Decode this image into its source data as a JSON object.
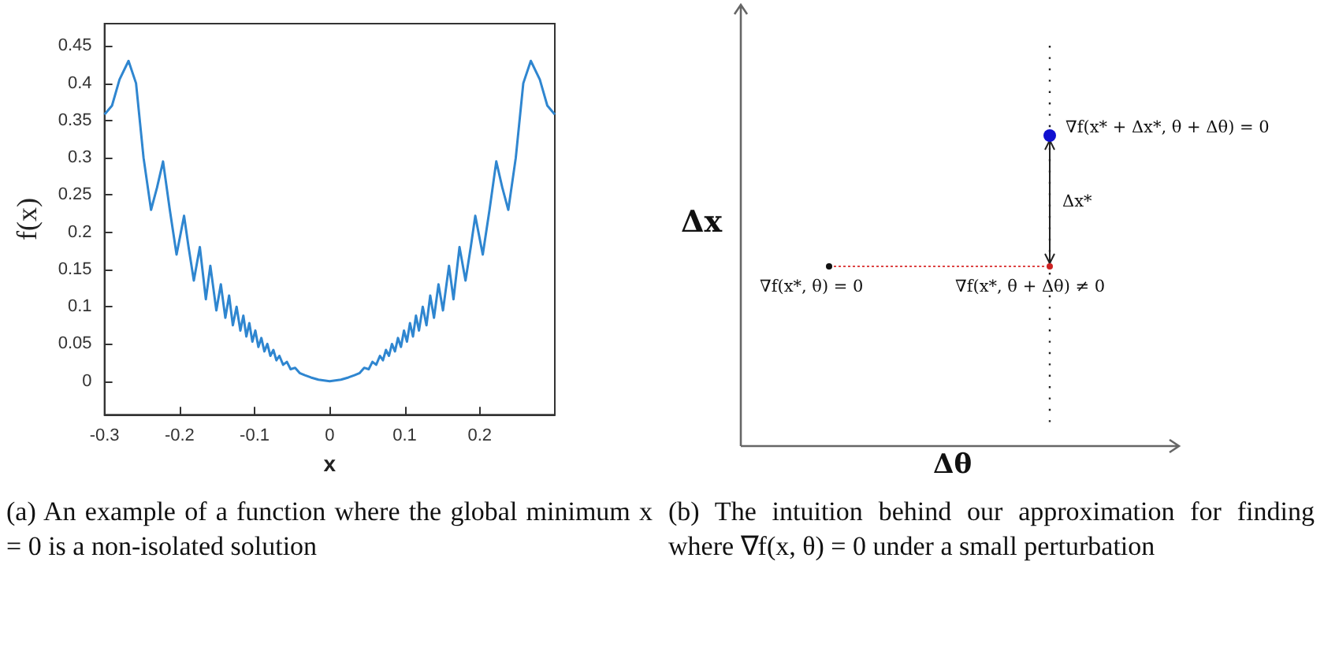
{
  "chart_data": [
    {
      "type": "line",
      "xlabel": "x",
      "ylabel": "f(x)",
      "xlim": [
        -0.3,
        0.3
      ],
      "xticks": [
        -0.3,
        -0.2,
        -0.1,
        0,
        0.1,
        0.2
      ],
      "ylim": [
        -0.045,
        0.48
      ],
      "yticks": [
        0,
        0.05,
        0.1,
        0.15,
        0.2,
        0.25,
        0.3,
        0.35,
        0.4,
        0.45
      ],
      "grid": false,
      "marker": "none",
      "line_style": "solid",
      "x": [
        -0.3,
        -0.29,
        -0.28,
        -0.268,
        -0.258,
        -0.248,
        -0.238,
        -0.23,
        -0.222,
        -0.213,
        -0.204,
        -0.194,
        -0.188,
        -0.181,
        -0.173,
        -0.165,
        -0.159,
        -0.151,
        -0.145,
        -0.139,
        -0.134,
        -0.129,
        -0.124,
        -0.119,
        -0.115,
        -0.111,
        -0.107,
        -0.103,
        -0.099,
        -0.095,
        -0.091,
        -0.087,
        -0.083,
        -0.079,
        -0.075,
        -0.071,
        -0.067,
        -0.062,
        -0.057,
        -0.052,
        -0.046,
        -0.04,
        -0.033,
        -0.025,
        -0.015,
        0,
        0.015,
        0.025,
        0.033,
        0.04,
        0.046,
        0.052,
        0.057,
        0.062,
        0.067,
        0.071,
        0.075,
        0.079,
        0.083,
        0.087,
        0.091,
        0.095,
        0.099,
        0.103,
        0.107,
        0.111,
        0.115,
        0.119,
        0.124,
        0.129,
        0.134,
        0.139,
        0.145,
        0.151,
        0.159,
        0.165,
        0.173,
        0.181,
        0.188,
        0.194,
        0.204,
        0.213,
        0.222,
        0.23,
        0.238,
        0.248,
        0.258,
        0.268,
        0.28,
        0.29,
        0.3
      ],
      "series": [
        {
          "color": "#2f86d0",
          "values": [
            0.358,
            0.37,
            0.405,
            0.43,
            0.4,
            0.3,
            0.23,
            0.26,
            0.295,
            0.23,
            0.17,
            0.222,
            0.18,
            0.135,
            0.18,
            0.11,
            0.155,
            0.095,
            0.13,
            0.085,
            0.115,
            0.075,
            0.1,
            0.068,
            0.088,
            0.06,
            0.078,
            0.053,
            0.068,
            0.046,
            0.058,
            0.04,
            0.05,
            0.034,
            0.042,
            0.028,
            0.034,
            0.022,
            0.026,
            0.016,
            0.018,
            0.011,
            0.008,
            0.005,
            0.002,
            0,
            0.002,
            0.005,
            0.008,
            0.011,
            0.018,
            0.016,
            0.026,
            0.022,
            0.034,
            0.028,
            0.042,
            0.034,
            0.05,
            0.04,
            0.058,
            0.046,
            0.068,
            0.053,
            0.078,
            0.06,
            0.088,
            0.068,
            0.1,
            0.075,
            0.115,
            0.085,
            0.13,
            0.095,
            0.155,
            0.11,
            0.18,
            0.135,
            0.18,
            0.222,
            0.17,
            0.23,
            0.295,
            0.26,
            0.23,
            0.3,
            0.4,
            0.43,
            0.405,
            0.37,
            0.358
          ]
        }
      ],
      "annotations": [
        "(a) An example of a function where the global minimum x = 0 is a non-isolated solution"
      ]
    },
    {
      "type": "other",
      "xlabel": "Δθ",
      "ylabel": "Δx",
      "annotations": [
        "∇f(x* + Δx*, θ + Δθ) = 0",
        "Δx*",
        "∇f(x*, θ) = 0",
        "∇f(x*, θ + Δθ) ≠ 0",
        "(b) The intuition behind our approximation for finding where ∇f(x, θ) = 0 under a small perturbation"
      ]
    }
  ]
}
